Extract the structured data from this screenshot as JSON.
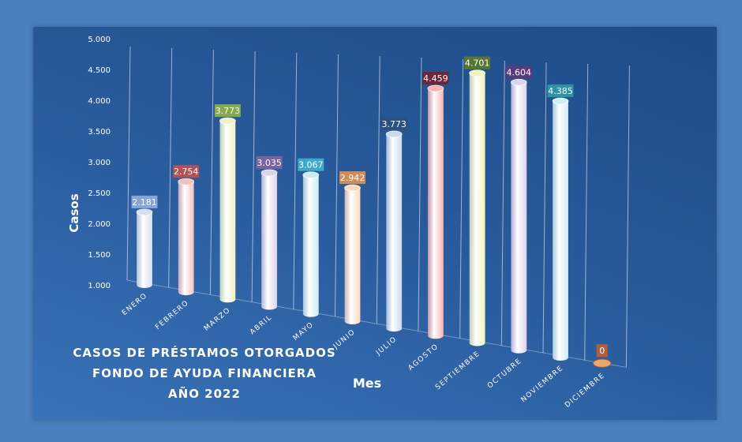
{
  "chart_data": {
    "type": "bar",
    "title": [
      "CASOS DE PRÉSTAMOS OTORGADOS",
      "FONDO DE AYUDA FINANCIERA",
      "AÑO 2022"
    ],
    "xlabel": "Mes",
    "ylabel": "Casos",
    "ylim": [
      1000,
      5000
    ],
    "yticks": [
      "1.000",
      "1.500",
      "2.000",
      "2.500",
      "3.000",
      "3.500",
      "4.000",
      "4.500",
      "5.000"
    ],
    "categories": [
      "ENERO",
      "FEBRERO",
      "MARZO",
      "ABRIL",
      "MAYO",
      "JUNIO",
      "JULIO",
      "AGOSTO",
      "SEPTIEMBRE",
      "OCTUBRE",
      "NOVIEMBRE",
      "DICIEMBRE"
    ],
    "values": [
      2181,
      2754,
      3773,
      3035,
      3067,
      2942,
      3773,
      4459,
      4701,
      4604,
      4385,
      0
    ],
    "value_labels": [
      "2.181",
      "2.754",
      "3.773",
      "3.035",
      "3.067",
      "2.942",
      "3.773",
      "4.459",
      "4.701",
      "4.604",
      "4.385",
      "0"
    ],
    "bar_colors": [
      "#d6e0f0",
      "#f2c2c0",
      "#ecf3c4",
      "#ddd2ee",
      "#cfeaf6",
      "#fbd9bd",
      "#c9d9f0",
      "#f6b2b2",
      "#eef5bb",
      "#ddd2ee",
      "#cdeef6",
      "#f7d2a8"
    ],
    "label_colors": [
      "#8eaed8",
      "#c0504d",
      "#8db046",
      "#8064a2",
      "#3fb0cc",
      "#e0904f",
      "#2d4f80",
      "#7a2230",
      "#5d7a2a",
      "#5c3a7a",
      "#2f9aa8",
      "#c06030"
    ],
    "grid": false
  }
}
